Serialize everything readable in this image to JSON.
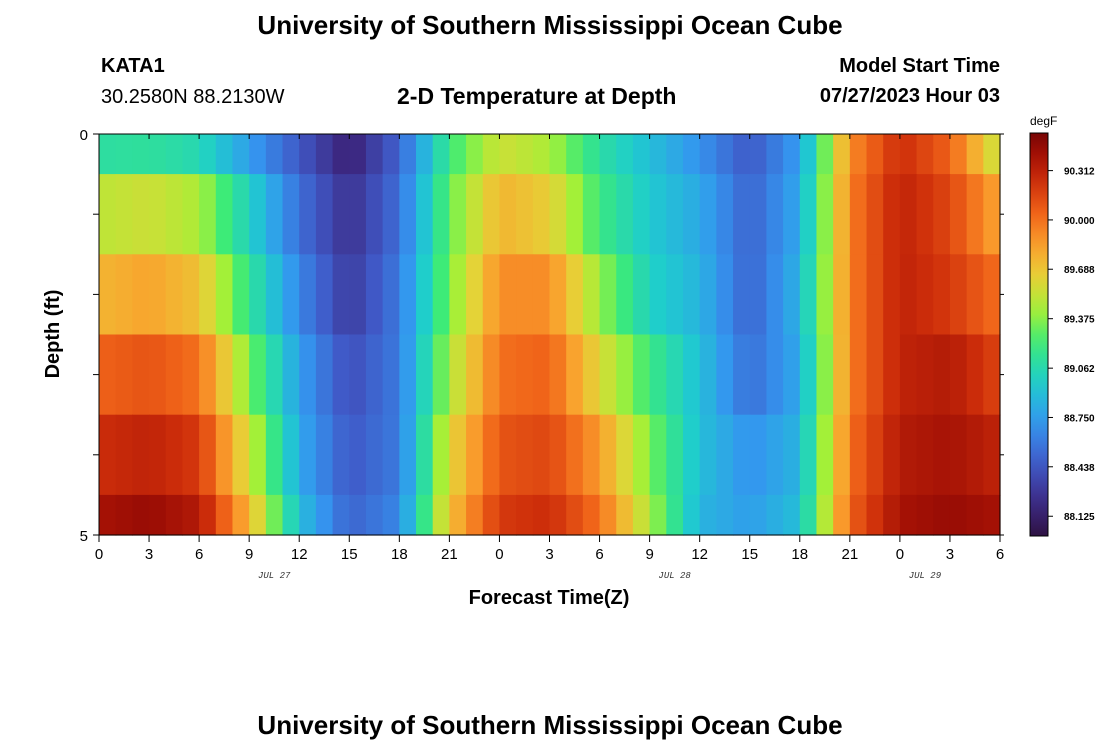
{
  "header": {
    "title": "University of Southern Mississippi Ocean Cube",
    "station": "KATA1",
    "coordinates": "30.2580N  88.2130W",
    "start_label": "Model Start Time",
    "start_value": "07/27/2023 Hour 03"
  },
  "footer": {
    "title": "University of Southern Mississippi Ocean Cube"
  },
  "chart_data": {
    "type": "heatmap",
    "title": "2-D Temperature at Depth",
    "xlabel": "Forecast Time(Z)",
    "ylabel": "Depth (ft)",
    "x_tick_labels": [
      "0",
      "3",
      "6",
      "9",
      "12",
      "15",
      "18",
      "21",
      "0",
      "3",
      "6",
      "9",
      "12",
      "15",
      "18",
      "21",
      "0",
      "3",
      "6"
    ],
    "date_labels": [
      {
        "text": "JUL 27",
        "tick_index": 3.5
      },
      {
        "text": "JUL 28",
        "tick_index": 11.5
      },
      {
        "text": "JUL 29",
        "tick_index": 16.5
      }
    ],
    "y_tick_labels": [
      {
        "value": 0,
        "text": "0"
      },
      {
        "value": 1,
        "text": ""
      },
      {
        "value": 2,
        "text": ""
      },
      {
        "value": 3,
        "text": ""
      },
      {
        "value": 4,
        "text": ""
      },
      {
        "value": 5,
        "text": "5"
      }
    ],
    "xlim_hours": [
      0,
      54
    ],
    "ylim": [
      0,
      5
    ],
    "depth_bins": [
      {
        "top": 0.0,
        "bottom": 0.5
      },
      {
        "top": 0.5,
        "bottom": 1.5
      },
      {
        "top": 1.5,
        "bottom": 2.5
      },
      {
        "top": 2.5,
        "bottom": 3.5
      },
      {
        "top": 3.5,
        "bottom": 4.5
      },
      {
        "top": 4.5,
        "bottom": 5.0
      }
    ],
    "hour_knots": [
      0,
      3,
      6,
      9,
      12,
      15,
      18,
      21,
      24,
      27,
      30,
      33,
      36,
      39,
      42,
      45,
      48,
      51,
      54
    ],
    "temperature_knots_degF": [
      [
        89.1,
        89.12,
        89.05,
        88.75,
        88.45,
        88.15,
        88.5,
        89.2,
        89.55,
        89.45,
        89.1,
        88.9,
        88.7,
        88.45,
        88.75,
        89.9,
        90.25,
        90.05,
        89.5
      ],
      [
        89.5,
        89.55,
        89.45,
        89.0,
        88.55,
        88.25,
        88.55,
        89.3,
        89.75,
        89.65,
        89.2,
        88.95,
        88.8,
        88.5,
        88.8,
        89.95,
        90.3,
        90.15,
        89.8
      ],
      [
        89.75,
        89.82,
        89.7,
        89.15,
        88.65,
        88.3,
        88.6,
        89.35,
        89.9,
        89.9,
        89.4,
        89.0,
        88.85,
        88.5,
        88.85,
        89.95,
        90.3,
        90.2,
        90.0
      ],
      [
        90.05,
        90.1,
        90.0,
        89.35,
        88.75,
        88.4,
        88.6,
        89.45,
        90.0,
        90.05,
        89.6,
        89.2,
        88.9,
        88.55,
        88.8,
        89.95,
        90.3,
        90.35,
        90.15
      ],
      [
        90.25,
        90.3,
        90.2,
        89.55,
        88.8,
        88.45,
        88.6,
        89.6,
        90.1,
        90.15,
        89.85,
        89.35,
        88.9,
        88.7,
        88.85,
        90.0,
        90.35,
        90.4,
        90.3
      ],
      [
        90.4,
        90.45,
        90.35,
        89.75,
        88.9,
        88.5,
        88.65,
        89.7,
        90.2,
        90.25,
        90.0,
        89.45,
        88.85,
        88.75,
        88.9,
        90.05,
        90.4,
        90.45,
        90.4
      ]
    ],
    "colorbar": {
      "unit": "degF",
      "min": 88.0,
      "max": 90.55,
      "tick_labels": [
        "90.312",
        "90.000",
        "89.688",
        "89.375",
        "89.062",
        "88.750",
        "88.438",
        "88.125"
      ]
    }
  }
}
